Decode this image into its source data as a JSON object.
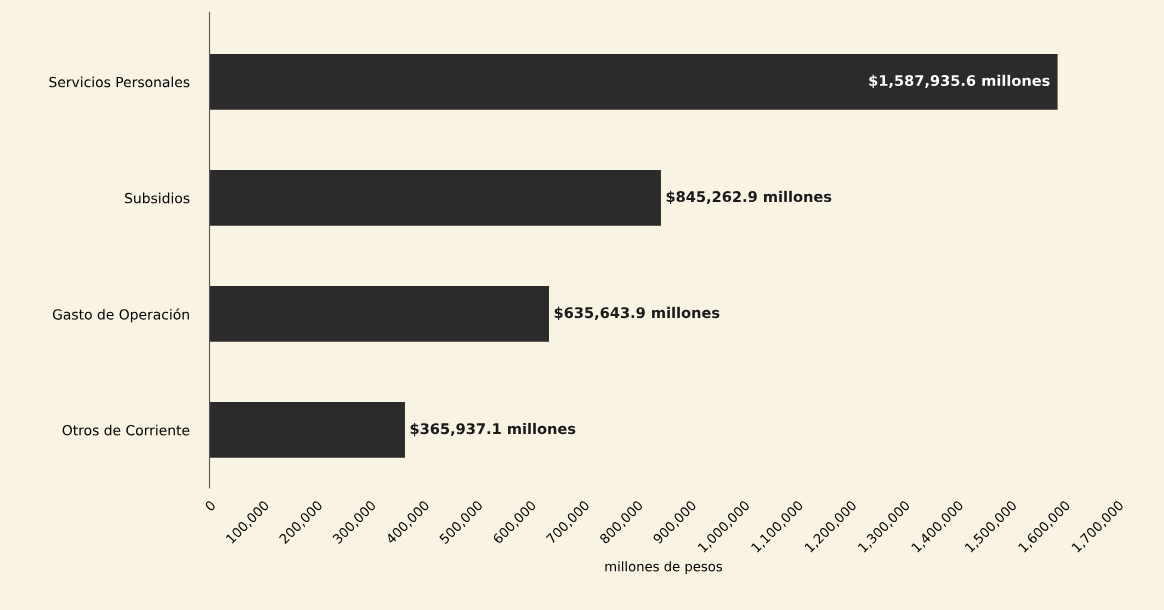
{
  "chart_data": {
    "type": "bar",
    "orientation": "horizontal",
    "xlabel": "millones de pesos",
    "categories": [
      "Servicios Personales",
      "Subsidios",
      "Gasto de Operación",
      "Otros de Corriente"
    ],
    "values": [
      1587935.6,
      845262.9,
      635643.9,
      365937.1
    ],
    "value_labels": [
      "$1,587,935.6 millones",
      "$845,262.9 millones",
      "$635,643.9 millones",
      "$365,937.1 millones"
    ],
    "color": "#2b2b2b",
    "xlim": [
      0,
      1700000
    ],
    "xticks": [
      0,
      {
        "value": 100000,
        "label": "100,000"
      },
      {
        "value": 200000,
        "label": "200,000"
      },
      {
        "value": 300000,
        "label": "300,000"
      },
      {
        "value": 400000,
        "label": "400,000"
      },
      {
        "value": 500000,
        "label": "500,000"
      },
      {
        "value": 600000,
        "label": "600,000"
      },
      {
        "value": 700000,
        "label": "700,000"
      },
      {
        "value": 800000,
        "label": "800,000"
      },
      {
        "value": 900000,
        "label": "900,000"
      },
      {
        "value": 1000000,
        "label": "1,000,000"
      },
      {
        "value": 1100000,
        "label": "1,100,000"
      },
      {
        "value": 1200000,
        "label": "1,200,000"
      },
      {
        "value": 1300000,
        "label": "1,300,000"
      },
      {
        "value": 1400000,
        "label": "1,400,000"
      },
      {
        "value": 1500000,
        "label": "1,500,000"
      },
      {
        "value": 1600000,
        "label": "1,600,000"
      },
      {
        "value": 1700000,
        "label": "1,700,000"
      }
    ],
    "grid": false,
    "legend": false
  }
}
